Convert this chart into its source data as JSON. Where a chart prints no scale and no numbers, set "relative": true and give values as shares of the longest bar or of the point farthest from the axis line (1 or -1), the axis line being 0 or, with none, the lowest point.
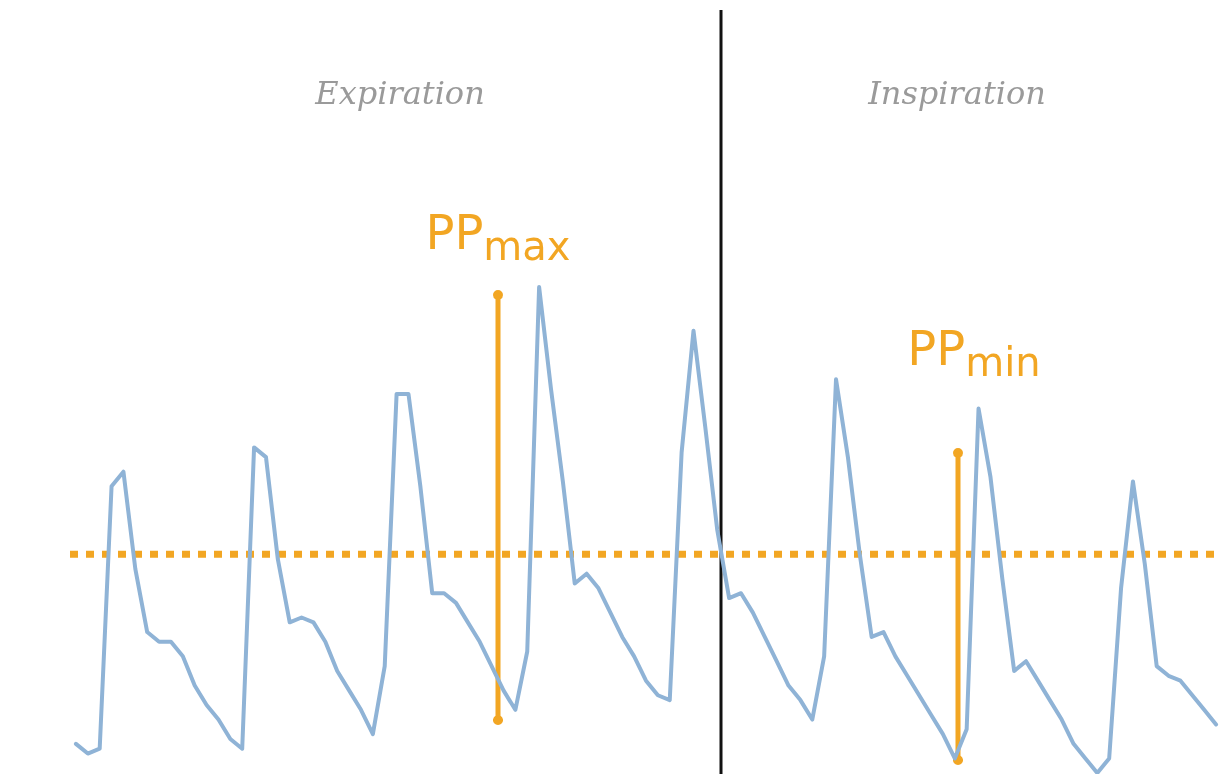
{
  "chart_data": {
    "type": "line",
    "relative": true,
    "grid": false,
    "legend": false,
    "marker": "none",
    "line_style": "solid",
    "annotations": [
      "Expiration",
      "Inspiration",
      "PP$_{max}$",
      "PP$_{min}$"
    ],
    "categories": [
      null,
      null,
      null,
      null,
      null,
      null,
      null,
      null,
      null,
      null,
      null,
      null,
      null,
      null,
      null,
      null,
      null,
      null,
      null,
      null,
      null,
      null,
      null,
      null,
      null,
      null,
      null,
      null,
      null,
      null,
      null,
      null,
      null,
      null,
      null,
      null,
      null,
      null,
      null,
      null,
      null,
      null,
      null,
      null,
      null,
      null,
      null,
      null,
      null,
      null,
      null,
      null,
      null,
      null,
      null,
      null,
      null,
      null,
      null,
      null,
      null,
      null,
      null,
      null,
      null,
      null,
      null,
      null,
      null,
      null,
      null,
      null,
      null,
      null,
      null,
      null,
      null,
      null,
      null,
      null,
      null,
      null,
      null,
      null,
      null,
      null,
      null,
      null,
      null,
      null,
      null,
      null,
      null,
      null,
      null,
      null,
      null
    ],
    "series": [
      {
        "color": "#8fb3d6",
        "values": [
          0.06,
          0.04,
          0.05,
          0.59,
          0.62,
          0.42,
          0.29,
          0.27,
          0.27,
          0.24,
          0.18,
          0.14,
          0.11,
          0.07,
          0.05,
          0.67,
          0.65,
          0.44,
          0.31,
          0.32,
          0.31,
          0.27,
          0.21,
          0.17,
          0.13,
          0.08,
          0.22,
          0.78,
          0.78,
          0.59,
          0.37,
          0.37,
          0.35,
          0.31,
          0.27,
          0.22,
          0.17,
          0.13,
          0.25,
          1.0,
          0.79,
          0.6,
          0.39,
          0.41,
          0.38,
          0.33,
          0.28,
          0.24,
          0.19,
          0.16,
          0.15,
          0.66,
          0.91,
          0.71,
          0.5,
          0.36,
          0.37,
          0.33,
          0.28,
          0.23,
          0.18,
          0.15,
          0.11,
          0.24,
          0.81,
          0.65,
          0.45,
          0.28,
          0.29,
          0.24,
          0.2,
          0.16,
          0.12,
          0.08,
          0.03,
          0.09,
          0.75,
          0.61,
          0.4,
          0.21,
          0.23,
          0.19,
          0.15,
          0.11,
          0.06,
          0.03,
          0.0,
          0.03,
          0.38,
          0.6,
          0.43,
          0.22,
          0.2,
          0.19,
          0.16,
          0.13,
          0.1
        ]
      }
    ],
    "ref_lines": [
      {
        "axis": "y",
        "value": 0.45,
        "color": "#f2a623",
        "line_style": "dotted"
      }
    ]
  }
}
